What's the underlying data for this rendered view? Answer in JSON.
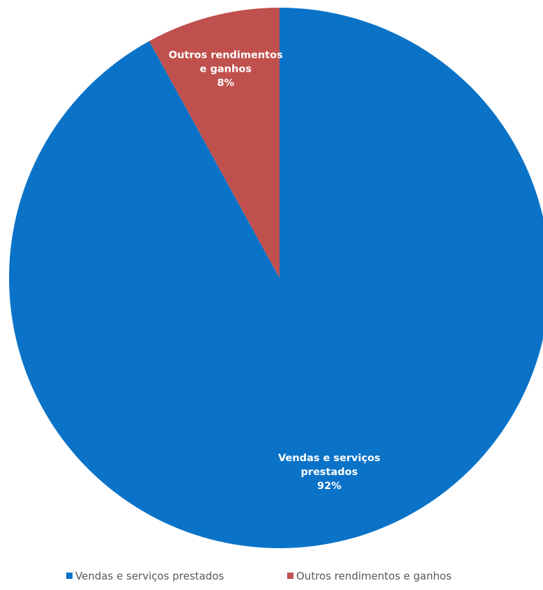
{
  "chart_data": {
    "type": "pie",
    "title": "",
    "slices": [
      {
        "name": "Vendas e serviços prestados",
        "value": 92,
        "value_label": "92%",
        "label_lines": [
          "Vendas e serviços",
          "prestados",
          "92%"
        ],
        "color": "#0A73C8"
      },
      {
        "name": "Outros rendimentos e ganhos",
        "value": 8,
        "value_label": "8%",
        "label_lines": [
          "Outros rendimentos",
          "e ganhos",
          "8%"
        ],
        "color": "#C0504D"
      }
    ],
    "legend": {
      "position": "bottom",
      "entries": [
        "Vendas e serviços prestados",
        "Outros rendimentos e ganhos"
      ]
    }
  }
}
